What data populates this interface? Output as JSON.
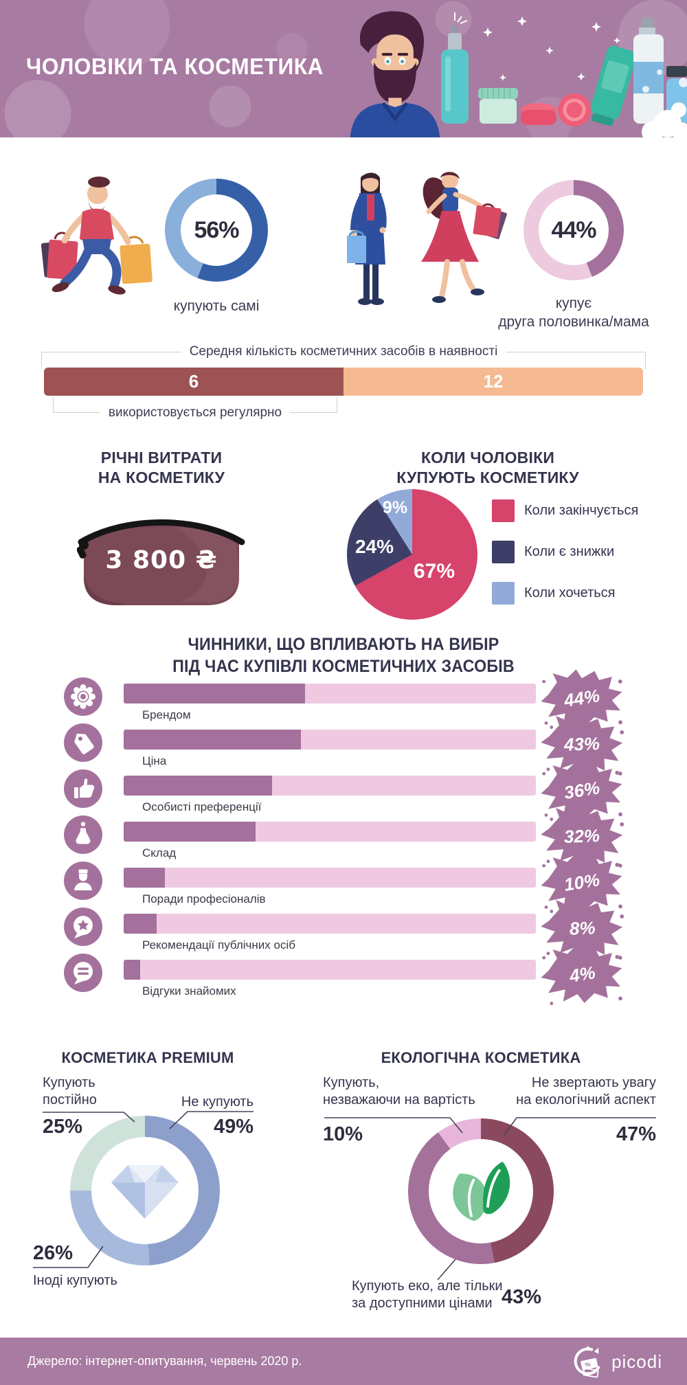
{
  "header": {
    "title": "ЧОЛОВІКИ ТА КОСМЕТИКА",
    "bg_color": "#a87ba2"
  },
  "annual": {
    "title": "РІЧНІ ВИТРАТИ\nНА КОСМЕТИКУ",
    "amount": "3 800 ₴",
    "bag_color": "#7c4956"
  },
  "footer": {
    "source": "Джерело: інтернет-опитування, червень 2020 р.",
    "brand": "picodi"
  },
  "chart_data": [
    {
      "id": "buy-self-donut",
      "type": "donut",
      "pct": "56%",
      "caption": "купують самі",
      "slices": [
        {
          "label": "купують самі",
          "value": 56,
          "color": "#3560a8"
        },
        {
          "value": 44,
          "color": "#89afdb"
        }
      ]
    },
    {
      "id": "buy-partner-donut",
      "type": "donut",
      "pct": "44%",
      "caption": "купує\nдруга половинка/мама",
      "slices": [
        {
          "label": "купує друга половинка/мама",
          "value": 44,
          "color": "#a4719c"
        },
        {
          "value": 56,
          "color": "#eecade"
        }
      ]
    },
    {
      "id": "avg-products-bar",
      "type": "bar",
      "top_label": "Середня кількість косметичних засобів в наявності",
      "bottom_label": "використовується регулярно",
      "used": {
        "label": "6",
        "value": 6,
        "color": "#9d5353"
      },
      "total": {
        "label": "12",
        "value": 12,
        "color": "#f5ba92"
      }
    },
    {
      "id": "when-buy-pie",
      "type": "pie",
      "title": "КОЛИ ЧОЛОВІКИ\nКУПУЮТЬ КОСМЕТИКУ",
      "legend_position": "right",
      "slices": [
        {
          "label": "Коли закінчується",
          "value": 67,
          "pct": "67%",
          "color": "#d6436b"
        },
        {
          "label": "Коли є знижки",
          "value": 24,
          "pct": "24%",
          "color": "#3d3f68"
        },
        {
          "label": "Коли хочеться",
          "value": 9,
          "pct": "9%",
          "color": "#92aad8"
        }
      ]
    },
    {
      "id": "factors-bars",
      "type": "bar",
      "title": "ЧИННИКИ, ЩО ВПЛИВАЮТЬ НА ВИБІР\nПІД ЧАС КУПІВЛІ КОСМЕТИЧНИХ ЗАСОБІВ",
      "xlim": [
        0,
        100
      ],
      "track_color": "#eec9e1",
      "fill_color": "#a4719c",
      "items": [
        {
          "label": "Брендом",
          "value": 44,
          "pct": "44%",
          "icon": "gear-icon"
        },
        {
          "label": "Ціна",
          "value": 43,
          "pct": "43%",
          "icon": "price-tag-icon"
        },
        {
          "label": "Особисті преференції",
          "value": 36,
          "pct": "36%",
          "icon": "thumb-up-icon"
        },
        {
          "label": "Склад",
          "value": 32,
          "pct": "32%",
          "icon": "flask-icon"
        },
        {
          "label": "Поради професіоналів",
          "value": 10,
          "pct": "10%",
          "icon": "professional-icon"
        },
        {
          "label": "Рекомендації публічних осіб",
          "value": 8,
          "pct": "8%",
          "icon": "star-bubble-icon"
        },
        {
          "label": "Відгуки знайомих",
          "value": 4,
          "pct": "4%",
          "icon": "chat-bubble-icon"
        }
      ]
    },
    {
      "id": "premium-donut",
      "type": "donut",
      "title": "КОСМЕТИКА PREMIUM",
      "center_icon": "diamond-icon",
      "slices": [
        {
          "label": "Не купують",
          "value": 49,
          "pct": "49%",
          "color": "#8d9fcb"
        },
        {
          "label": "Іноді купують",
          "value": 26,
          "pct": "26%",
          "color": "#a7bade"
        },
        {
          "label": "Купують\nпостійно",
          "value": 25,
          "pct": "25%",
          "color": "#cfe2d9"
        }
      ]
    },
    {
      "id": "eco-donut",
      "type": "donut",
      "title": "ЕКОЛОГІЧНА КОСМЕТИКА",
      "center_icon": "leaves-icon",
      "slices": [
        {
          "label": "Не звертають увагу\nна екологічний аспект",
          "value": 47,
          "pct": "47%",
          "color": "#8a495e"
        },
        {
          "label": "Купують еко, але тільки\nза доступними цінами",
          "value": 43,
          "pct": "43%",
          "color": "#a4719b"
        },
        {
          "label": "Купують,\nнезважаючи на вартість",
          "value": 10,
          "pct": "10%",
          "color": "#e7b6da"
        }
      ]
    }
  ]
}
